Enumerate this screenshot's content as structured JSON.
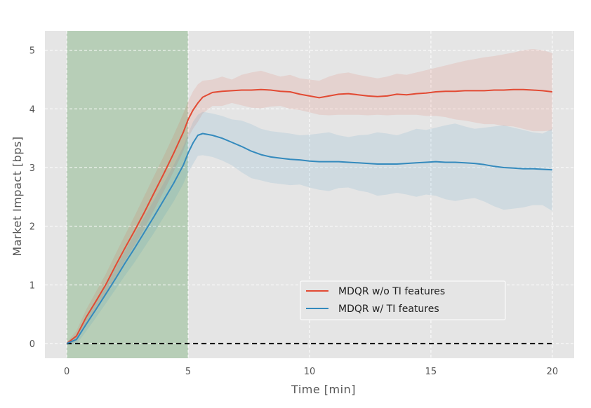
{
  "chart_data": {
    "type": "line",
    "title": "",
    "xlabel": "Time [min]",
    "ylabel": "Market Impact [bps]",
    "xlim": [
      -0.9,
      20.9
    ],
    "ylim": [
      -0.25,
      5.33
    ],
    "xticks": [
      0,
      5,
      10,
      15,
      20
    ],
    "yticks": [
      0,
      1,
      2,
      3,
      4,
      5
    ],
    "grid": true,
    "legend_position": "lower-right",
    "shaded_region": {
      "x_start": 0,
      "x_end": 5,
      "color": "#2e8b2e"
    },
    "baseline": {
      "y": 0,
      "style": "dashed",
      "color": "#000000"
    },
    "series": [
      {
        "name": "MDQR w/o TI features",
        "color": "#E24A33",
        "points": [
          [
            0,
            0
          ],
          [
            0.4,
            0.13
          ],
          [
            0.8,
            0.45
          ],
          [
            1.2,
            0.72
          ],
          [
            1.6,
            1.0
          ],
          [
            2.0,
            1.32
          ],
          [
            2.4,
            1.63
          ],
          [
            2.8,
            1.93
          ],
          [
            3.2,
            2.24
          ],
          [
            3.6,
            2.57
          ],
          [
            4.0,
            2.9
          ],
          [
            4.4,
            3.24
          ],
          [
            4.8,
            3.6
          ],
          [
            5.0,
            3.82
          ],
          [
            5.2,
            3.98
          ],
          [
            5.4,
            4.1
          ],
          [
            5.6,
            4.2
          ],
          [
            6.0,
            4.28
          ],
          [
            6.4,
            4.3
          ],
          [
            6.8,
            4.31
          ],
          [
            7.2,
            4.32
          ],
          [
            7.6,
            4.32
          ],
          [
            8.0,
            4.33
          ],
          [
            8.4,
            4.32
          ],
          [
            8.8,
            4.3
          ],
          [
            9.2,
            4.29
          ],
          [
            9.6,
            4.25
          ],
          [
            10.0,
            4.22
          ],
          [
            10.4,
            4.19
          ],
          [
            10.8,
            4.22
          ],
          [
            11.2,
            4.25
          ],
          [
            11.6,
            4.26
          ],
          [
            12.0,
            4.24
          ],
          [
            12.4,
            4.22
          ],
          [
            12.8,
            4.21
          ],
          [
            13.2,
            4.22
          ],
          [
            13.6,
            4.25
          ],
          [
            14.0,
            4.24
          ],
          [
            14.4,
            4.26
          ],
          [
            14.8,
            4.27
          ],
          [
            15.2,
            4.29
          ],
          [
            15.6,
            4.3
          ],
          [
            16.0,
            4.3
          ],
          [
            16.4,
            4.31
          ],
          [
            16.8,
            4.31
          ],
          [
            17.2,
            4.31
          ],
          [
            17.6,
            4.32
          ],
          [
            18.0,
            4.32
          ],
          [
            18.4,
            4.33
          ],
          [
            18.8,
            4.33
          ],
          [
            19.2,
            4.32
          ],
          [
            19.6,
            4.31
          ],
          [
            20.0,
            4.29
          ]
        ],
        "band_upper": [
          [
            0,
            0.02
          ],
          [
            0.4,
            0.22
          ],
          [
            0.8,
            0.58
          ],
          [
            1.2,
            0.88
          ],
          [
            1.6,
            1.18
          ],
          [
            2.0,
            1.52
          ],
          [
            2.4,
            1.85
          ],
          [
            2.8,
            2.18
          ],
          [
            3.2,
            2.52
          ],
          [
            3.6,
            2.86
          ],
          [
            4.0,
            3.2
          ],
          [
            4.4,
            3.55
          ],
          [
            4.8,
            3.92
          ],
          [
            5.0,
            4.13
          ],
          [
            5.2,
            4.3
          ],
          [
            5.4,
            4.42
          ],
          [
            5.6,
            4.48
          ],
          [
            6.0,
            4.5
          ],
          [
            6.4,
            4.55
          ],
          [
            6.8,
            4.5
          ],
          [
            7.2,
            4.58
          ],
          [
            7.6,
            4.62
          ],
          [
            8.0,
            4.65
          ],
          [
            8.4,
            4.6
          ],
          [
            8.8,
            4.55
          ],
          [
            9.2,
            4.58
          ],
          [
            9.6,
            4.52
          ],
          [
            10.0,
            4.5
          ],
          [
            10.4,
            4.48
          ],
          [
            10.8,
            4.55
          ],
          [
            11.2,
            4.6
          ],
          [
            11.6,
            4.62
          ],
          [
            12.0,
            4.58
          ],
          [
            12.4,
            4.55
          ],
          [
            12.8,
            4.52
          ],
          [
            13.2,
            4.55
          ],
          [
            13.6,
            4.6
          ],
          [
            14.0,
            4.58
          ],
          [
            14.4,
            4.62
          ],
          [
            14.8,
            4.66
          ],
          [
            15.2,
            4.7
          ],
          [
            15.6,
            4.74
          ],
          [
            16.0,
            4.78
          ],
          [
            16.4,
            4.82
          ],
          [
            16.8,
            4.85
          ],
          [
            17.2,
            4.88
          ],
          [
            17.6,
            4.9
          ],
          [
            18.0,
            4.93
          ],
          [
            18.4,
            4.96
          ],
          [
            18.8,
            5.0
          ],
          [
            19.2,
            5.02
          ],
          [
            19.6,
            5.0
          ],
          [
            20.0,
            4.95
          ]
        ],
        "band_lower": [
          [
            0,
            -0.02
          ],
          [
            0.4,
            0.04
          ],
          [
            0.8,
            0.32
          ],
          [
            1.2,
            0.56
          ],
          [
            1.6,
            0.82
          ],
          [
            2.0,
            1.12
          ],
          [
            2.4,
            1.41
          ],
          [
            2.8,
            1.68
          ],
          [
            3.2,
            1.96
          ],
          [
            3.6,
            2.28
          ],
          [
            4.0,
            2.6
          ],
          [
            4.4,
            2.93
          ],
          [
            4.8,
            3.28
          ],
          [
            5.0,
            3.51
          ],
          [
            5.2,
            3.66
          ],
          [
            5.4,
            3.78
          ],
          [
            5.6,
            3.92
          ],
          [
            6.0,
            4.05
          ],
          [
            6.4,
            4.05
          ],
          [
            6.8,
            4.1
          ],
          [
            7.2,
            4.06
          ],
          [
            7.6,
            4.02
          ],
          [
            8.0,
            4.01
          ],
          [
            8.4,
            4.04
          ],
          [
            8.8,
            4.05
          ],
          [
            9.2,
            4.0
          ],
          [
            9.6,
            3.98
          ],
          [
            10.0,
            3.94
          ],
          [
            10.4,
            3.9
          ],
          [
            10.8,
            3.89
          ],
          [
            11.2,
            3.9
          ],
          [
            11.6,
            3.9
          ],
          [
            12.0,
            3.9
          ],
          [
            12.4,
            3.89
          ],
          [
            12.8,
            3.9
          ],
          [
            13.2,
            3.89
          ],
          [
            13.6,
            3.9
          ],
          [
            14.0,
            3.9
          ],
          [
            14.4,
            3.9
          ],
          [
            14.8,
            3.88
          ],
          [
            15.2,
            3.88
          ],
          [
            15.6,
            3.86
          ],
          [
            16.0,
            3.82
          ],
          [
            16.4,
            3.8
          ],
          [
            16.8,
            3.77
          ],
          [
            17.2,
            3.74
          ],
          [
            17.6,
            3.74
          ],
          [
            18.0,
            3.71
          ],
          [
            18.4,
            3.7
          ],
          [
            18.8,
            3.66
          ],
          [
            19.2,
            3.62
          ],
          [
            19.6,
            3.62
          ],
          [
            20.0,
            3.63
          ]
        ]
      },
      {
        "name": "MDQR w/ TI features",
        "color": "#348ABD",
        "points": [
          [
            0,
            0
          ],
          [
            0.4,
            0.07
          ],
          [
            0.8,
            0.33
          ],
          [
            1.2,
            0.58
          ],
          [
            1.6,
            0.84
          ],
          [
            2.0,
            1.1
          ],
          [
            2.4,
            1.37
          ],
          [
            2.8,
            1.63
          ],
          [
            3.2,
            1.9
          ],
          [
            3.6,
            2.17
          ],
          [
            4.0,
            2.45
          ],
          [
            4.4,
            2.73
          ],
          [
            4.8,
            3.04
          ],
          [
            5.0,
            3.25
          ],
          [
            5.2,
            3.42
          ],
          [
            5.4,
            3.55
          ],
          [
            5.6,
            3.58
          ],
          [
            6.0,
            3.55
          ],
          [
            6.4,
            3.5
          ],
          [
            6.8,
            3.43
          ],
          [
            7.2,
            3.36
          ],
          [
            7.6,
            3.28
          ],
          [
            8.0,
            3.22
          ],
          [
            8.4,
            3.18
          ],
          [
            8.8,
            3.16
          ],
          [
            9.2,
            3.14
          ],
          [
            9.6,
            3.13
          ],
          [
            10.0,
            3.11
          ],
          [
            10.4,
            3.1
          ],
          [
            10.8,
            3.1
          ],
          [
            11.2,
            3.1
          ],
          [
            11.6,
            3.09
          ],
          [
            12.0,
            3.08
          ],
          [
            12.4,
            3.07
          ],
          [
            12.8,
            3.06
          ],
          [
            13.2,
            3.06
          ],
          [
            13.6,
            3.06
          ],
          [
            14.0,
            3.07
          ],
          [
            14.4,
            3.08
          ],
          [
            14.8,
            3.09
          ],
          [
            15.2,
            3.1
          ],
          [
            15.6,
            3.09
          ],
          [
            16.0,
            3.09
          ],
          [
            16.4,
            3.08
          ],
          [
            16.8,
            3.07
          ],
          [
            17.2,
            3.05
          ],
          [
            17.6,
            3.02
          ],
          [
            18.0,
            3.0
          ],
          [
            18.4,
            2.99
          ],
          [
            18.8,
            2.98
          ],
          [
            19.2,
            2.98
          ],
          [
            19.6,
            2.97
          ],
          [
            20.0,
            2.96
          ]
        ],
        "band_upper": [
          [
            0,
            0.02
          ],
          [
            0.4,
            0.15
          ],
          [
            0.8,
            0.45
          ],
          [
            1.2,
            0.72
          ],
          [
            1.6,
            1.0
          ],
          [
            2.0,
            1.28
          ],
          [
            2.4,
            1.58
          ],
          [
            2.8,
            1.87
          ],
          [
            3.2,
            2.16
          ],
          [
            3.6,
            2.45
          ],
          [
            4.0,
            2.74
          ],
          [
            4.4,
            3.04
          ],
          [
            4.8,
            3.36
          ],
          [
            5.0,
            3.58
          ],
          [
            5.2,
            3.78
          ],
          [
            5.4,
            3.9
          ],
          [
            5.6,
            3.95
          ],
          [
            6.0,
            3.92
          ],
          [
            6.4,
            3.88
          ],
          [
            6.8,
            3.82
          ],
          [
            7.2,
            3.8
          ],
          [
            7.6,
            3.74
          ],
          [
            8.0,
            3.66
          ],
          [
            8.4,
            3.62
          ],
          [
            8.8,
            3.6
          ],
          [
            9.2,
            3.58
          ],
          [
            9.6,
            3.55
          ],
          [
            10.0,
            3.56
          ],
          [
            10.4,
            3.58
          ],
          [
            10.8,
            3.6
          ],
          [
            11.2,
            3.55
          ],
          [
            11.6,
            3.52
          ],
          [
            12.0,
            3.55
          ],
          [
            12.4,
            3.56
          ],
          [
            12.8,
            3.6
          ],
          [
            13.2,
            3.58
          ],
          [
            13.6,
            3.55
          ],
          [
            14.0,
            3.6
          ],
          [
            14.4,
            3.66
          ],
          [
            14.8,
            3.64
          ],
          [
            15.2,
            3.68
          ],
          [
            15.6,
            3.72
          ],
          [
            16.0,
            3.75
          ],
          [
            16.4,
            3.7
          ],
          [
            16.8,
            3.66
          ],
          [
            17.2,
            3.68
          ],
          [
            17.6,
            3.7
          ],
          [
            18.0,
            3.72
          ],
          [
            18.4,
            3.68
          ],
          [
            18.8,
            3.64
          ],
          [
            19.2,
            3.6
          ],
          [
            19.6,
            3.58
          ],
          [
            20.0,
            3.66
          ]
        ],
        "band_lower": [
          [
            0,
            -0.02
          ],
          [
            0.4,
            -0.01
          ],
          [
            0.8,
            0.21
          ],
          [
            1.2,
            0.44
          ],
          [
            1.6,
            0.68
          ],
          [
            2.0,
            0.92
          ],
          [
            2.4,
            1.16
          ],
          [
            2.8,
            1.39
          ],
          [
            3.2,
            1.64
          ],
          [
            3.6,
            1.89
          ],
          [
            4.0,
            2.16
          ],
          [
            4.4,
            2.42
          ],
          [
            4.8,
            2.72
          ],
          [
            5.0,
            2.92
          ],
          [
            5.2,
            3.06
          ],
          [
            5.4,
            3.2
          ],
          [
            5.6,
            3.21
          ],
          [
            6.0,
            3.18
          ],
          [
            6.4,
            3.12
          ],
          [
            6.8,
            3.04
          ],
          [
            7.2,
            2.92
          ],
          [
            7.6,
            2.82
          ],
          [
            8.0,
            2.78
          ],
          [
            8.4,
            2.74
          ],
          [
            8.8,
            2.72
          ],
          [
            9.2,
            2.7
          ],
          [
            9.6,
            2.71
          ],
          [
            10.0,
            2.66
          ],
          [
            10.4,
            2.62
          ],
          [
            10.8,
            2.6
          ],
          [
            11.2,
            2.65
          ],
          [
            11.6,
            2.66
          ],
          [
            12.0,
            2.61
          ],
          [
            12.4,
            2.58
          ],
          [
            12.8,
            2.52
          ],
          [
            13.2,
            2.54
          ],
          [
            13.6,
            2.57
          ],
          [
            14.0,
            2.54
          ],
          [
            14.4,
            2.5
          ],
          [
            14.8,
            2.54
          ],
          [
            15.2,
            2.52
          ],
          [
            15.6,
            2.46
          ],
          [
            16.0,
            2.43
          ],
          [
            16.4,
            2.46
          ],
          [
            16.8,
            2.48
          ],
          [
            17.2,
            2.42
          ],
          [
            17.6,
            2.34
          ],
          [
            18.0,
            2.28
          ],
          [
            18.4,
            2.3
          ],
          [
            18.8,
            2.32
          ],
          [
            19.2,
            2.36
          ],
          [
            19.6,
            2.36
          ],
          [
            20.0,
            2.26
          ]
        ]
      }
    ]
  }
}
